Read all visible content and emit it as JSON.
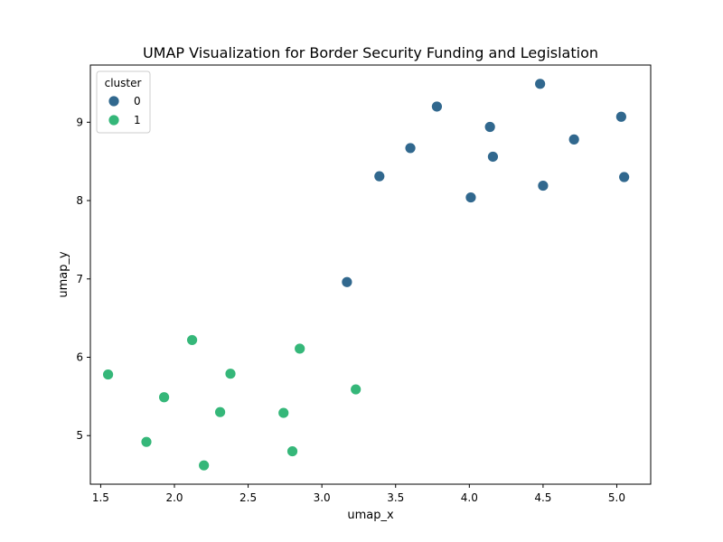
{
  "chart_data": {
    "type": "scatter",
    "title": "UMAP Visualization for Border Security Funding and Legislation",
    "xlabel": "umap_x",
    "ylabel": "umap_y",
    "xlim": [
      1.43,
      5.23
    ],
    "ylim": [
      4.38,
      9.73
    ],
    "xticks": [
      1.5,
      2.0,
      2.5,
      3.0,
      3.5,
      4.0,
      4.5,
      5.0
    ],
    "xtick_labels": [
      "1.5",
      "2.0",
      "2.5",
      "3.0",
      "3.5",
      "4.0",
      "4.5",
      "5.0"
    ],
    "yticks": [
      5,
      6,
      7,
      8,
      9
    ],
    "ytick_labels": [
      "5",
      "6",
      "7",
      "8",
      "9"
    ],
    "grid": false,
    "legend": {
      "title": "cluster",
      "placement": "top-left"
    },
    "series": [
      {
        "name": "0",
        "color": "#31688e",
        "x": [
          4.48,
          3.78,
          5.03,
          4.14,
          4.71,
          3.6,
          4.16,
          3.39,
          5.05,
          4.5,
          4.01,
          3.17
        ],
        "y": [
          9.49,
          9.2,
          9.07,
          8.94,
          8.78,
          8.67,
          8.56,
          8.31,
          8.3,
          8.19,
          8.04,
          6.96
        ]
      },
      {
        "name": "1",
        "color": "#35b779",
        "x": [
          2.12,
          2.85,
          2.38,
          1.55,
          3.23,
          1.93,
          2.31,
          2.74,
          1.81,
          2.8,
          2.2
        ],
        "y": [
          6.22,
          6.11,
          5.79,
          5.78,
          5.59,
          5.49,
          5.3,
          5.29,
          4.92,
          4.8,
          4.62
        ]
      }
    ]
  }
}
